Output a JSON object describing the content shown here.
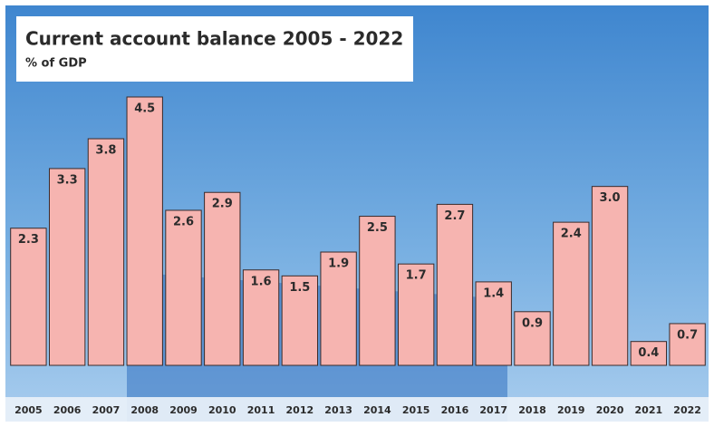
{
  "chart_data": {
    "type": "bar",
    "title": "Current account balance 2005 - 2022",
    "subtitle": "% of GDP",
    "categories": [
      "2005",
      "2006",
      "2007",
      "2008",
      "2009",
      "2010",
      "2011",
      "2012",
      "2013",
      "2014",
      "2015",
      "2016",
      "2017",
      "2018",
      "2019",
      "2020",
      "2021",
      "2022"
    ],
    "values": [
      2.3,
      3.3,
      3.8,
      4.5,
      2.6,
      2.9,
      1.6,
      1.5,
      1.9,
      2.5,
      1.7,
      2.7,
      1.4,
      0.9,
      2.4,
      3.0,
      0.4,
      0.7
    ],
    "value_labels": [
      "2.3",
      "3.3",
      "3.8",
      "4.5",
      "2.6",
      "2.9",
      "1.6",
      "1.5",
      "1.9",
      "2.5",
      "1.7",
      "2.7",
      "1.4",
      "0.9",
      "2.4",
      "3.0",
      "0.4",
      "0.7"
    ],
    "color": "#f6b4b0",
    "ylim": [
      0,
      4.5
    ]
  }
}
